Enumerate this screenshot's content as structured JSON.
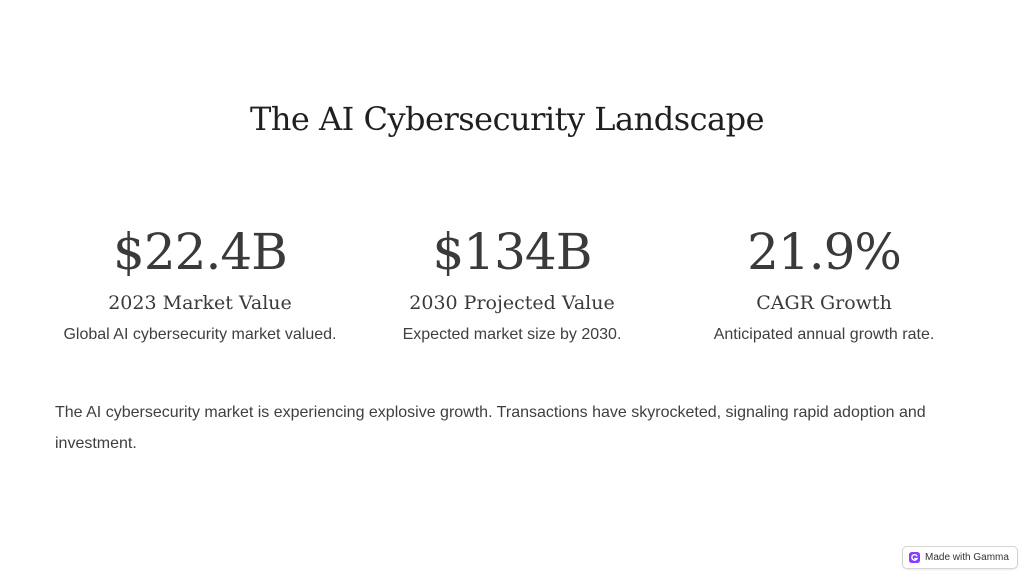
{
  "slide": {
    "title": "The AI Cybersecurity Landscape",
    "stats": [
      {
        "value": "$22.4B",
        "label": "2023 Market Value",
        "description": "Global AI cybersecurity market valued."
      },
      {
        "value": "$134B",
        "label": "2030 Projected Value",
        "description": "Expected market size by 2030."
      },
      {
        "value": "21.9%",
        "label": "CAGR Growth",
        "description": "Anticipated annual growth rate."
      }
    ],
    "body": "The AI cybersecurity market is experiencing explosive growth. Transactions have skyrocketed, signaling rapid adoption and investment."
  },
  "badge": {
    "label": "Made with Gamma",
    "icon": "gamma-logo-icon",
    "icon_color": "#8b3dff"
  }
}
